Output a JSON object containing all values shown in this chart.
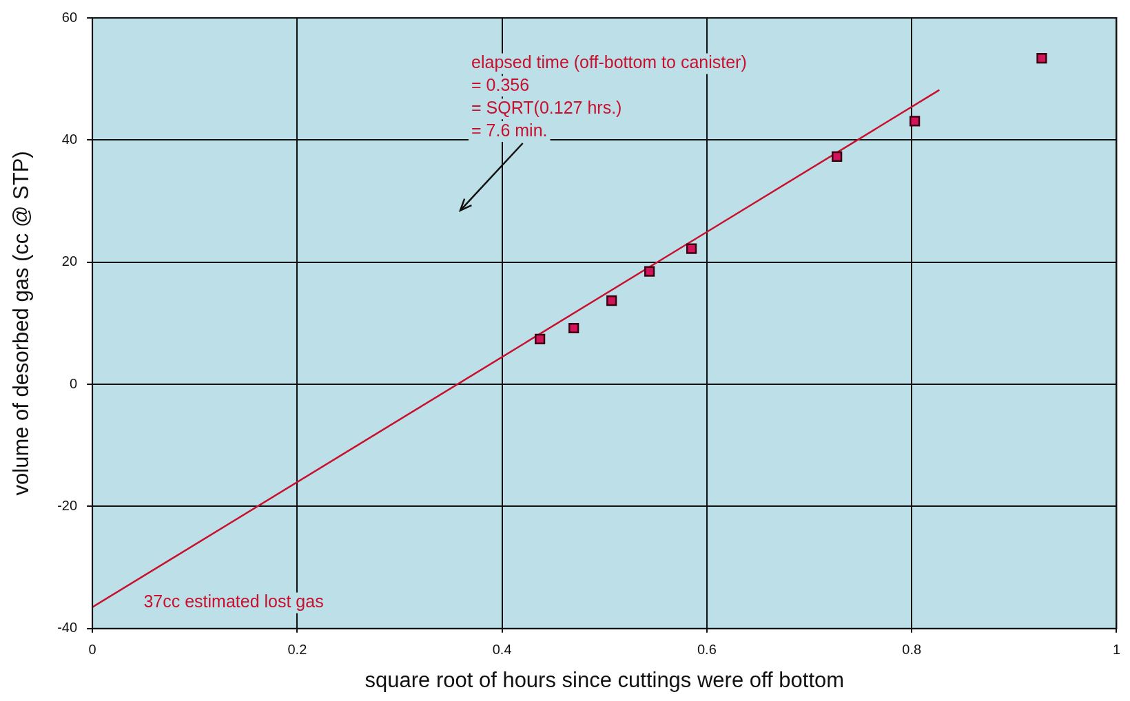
{
  "chart_data": {
    "type": "scatter",
    "xlabel": "square root of hours since cuttings were off bottom",
    "ylabel": "volume of desorbed gas (cc @ STP)",
    "series": [
      {
        "type": "scatter",
        "marker": "square",
        "color": "#d4145a",
        "x": [
          0.437,
          0.47,
          0.507,
          0.544,
          0.585,
          0.727,
          0.803,
          0.927
        ],
        "values": [
          7.4,
          9.2,
          13.7,
          18.5,
          22.2,
          37.3,
          43.1,
          53.4
        ]
      },
      {
        "type": "line",
        "color": "#c8102e",
        "x": [
          0,
          0.827
        ],
        "values": [
          -36.5,
          48.2
        ]
      }
    ],
    "annotations": [
      "elapsed time (off-bottom to canister)",
      "= 0.356",
      "= SQRT(0.127 hrs.)",
      "= 7.6 min.",
      "37cc estimated lost gas"
    ],
    "xlim": [
      0,
      1
    ],
    "xticks": [
      0,
      0.2,
      0.4,
      0.6,
      0.8,
      1
    ],
    "ylim": [
      -40,
      60
    ],
    "yticks": [
      -40,
      -20,
      0,
      20,
      40,
      60
    ],
    "grid": true,
    "legend": false,
    "line_style": "solid"
  }
}
